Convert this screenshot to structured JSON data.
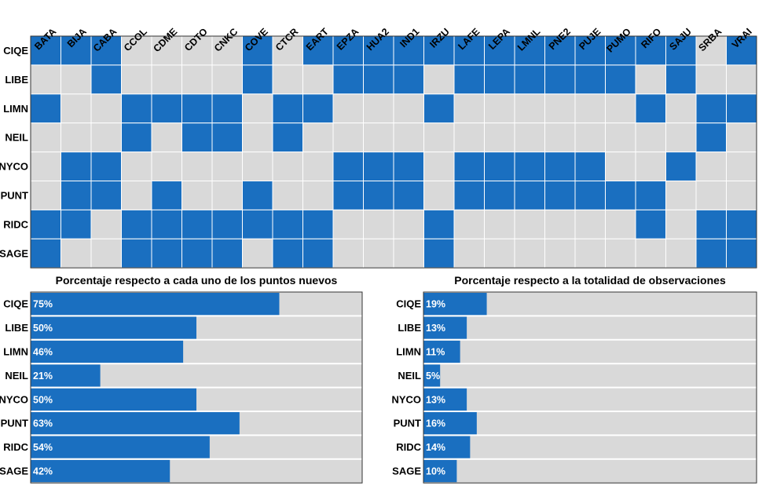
{
  "colors": {
    "on": "#1a6fc0",
    "off": "#d9d9d9",
    "bar": "#1a6fc0",
    "bar_bg": "#d9d9d9"
  },
  "chart_data": [
    {
      "type": "heatmap",
      "title": "",
      "columns": [
        "BATA",
        "BIJA",
        "CABA",
        "CCOL",
        "CDME",
        "CDTO",
        "CNKC",
        "COVE",
        "CTCR",
        "EART",
        "EPZA",
        "HUA2",
        "IND1",
        "IRZU",
        "LAFE",
        "LEPA",
        "LMNL",
        "PNE2",
        "PUJE",
        "PUMO",
        "RIFO",
        "SAJU",
        "SRBA",
        "VRAI"
      ],
      "rows": [
        "CIQE",
        "LIBE",
        "LIMN",
        "NEIL",
        "NYCO",
        "PUNT",
        "RIDC",
        "SAGE"
      ],
      "values": [
        [
          1,
          1,
          1,
          0,
          0,
          0,
          0,
          1,
          0,
          1,
          1,
          1,
          1,
          1,
          1,
          1,
          1,
          1,
          1,
          1,
          1,
          1,
          0,
          1
        ],
        [
          0,
          0,
          1,
          0,
          0,
          0,
          0,
          1,
          0,
          0,
          1,
          1,
          1,
          0,
          1,
          1,
          1,
          1,
          1,
          1,
          0,
          1,
          0,
          0
        ],
        [
          1,
          0,
          0,
          1,
          1,
          1,
          1,
          0,
          1,
          1,
          0,
          0,
          0,
          1,
          0,
          0,
          0,
          0,
          0,
          0,
          1,
          0,
          1,
          1
        ],
        [
          0,
          0,
          0,
          1,
          0,
          1,
          1,
          0,
          1,
          0,
          0,
          0,
          0,
          0,
          0,
          0,
          0,
          0,
          0,
          0,
          0,
          0,
          1,
          0
        ],
        [
          0,
          1,
          1,
          0,
          0,
          0,
          0,
          0,
          0,
          0,
          1,
          1,
          1,
          0,
          1,
          1,
          1,
          1,
          1,
          0,
          0,
          1,
          0,
          0
        ],
        [
          0,
          1,
          1,
          0,
          1,
          0,
          0,
          1,
          0,
          0,
          1,
          1,
          1,
          0,
          1,
          1,
          1,
          1,
          1,
          1,
          1,
          0,
          0,
          0
        ],
        [
          1,
          1,
          0,
          1,
          1,
          1,
          1,
          1,
          1,
          1,
          0,
          0,
          0,
          1,
          0,
          0,
          0,
          0,
          0,
          0,
          1,
          0,
          1,
          1
        ],
        [
          1,
          0,
          0,
          1,
          1,
          1,
          1,
          0,
          1,
          1,
          0,
          0,
          0,
          1,
          0,
          0,
          0,
          0,
          0,
          0,
          0,
          0,
          1,
          1
        ]
      ]
    },
    {
      "type": "bar",
      "orientation": "horizontal",
      "title": "Porcentaje respecto a cada uno de los puntos nuevos",
      "categories": [
        "CIQE",
        "LIBE",
        "LIMN",
        "NEIL",
        "NYCO",
        "PUNT",
        "RIDC",
        "SAGE"
      ],
      "values": [
        75,
        50,
        46,
        21,
        50,
        63,
        54,
        42
      ],
      "labels": [
        "75%",
        "50%",
        "46%",
        "21%",
        "50%",
        "63%",
        "54%",
        "42%"
      ],
      "xlim": [
        0,
        100
      ]
    },
    {
      "type": "bar",
      "orientation": "horizontal",
      "title": "Porcentaje respecto a la totalidad de observaciones",
      "categories": [
        "CIQE",
        "LIBE",
        "LIMN",
        "NEIL",
        "NYCO",
        "PUNT",
        "RIDC",
        "SAGE"
      ],
      "values": [
        19,
        13,
        11,
        5,
        13,
        16,
        14,
        10
      ],
      "labels": [
        "19%",
        "13%",
        "11%",
        "5%",
        "13%",
        "16%",
        "14%",
        "10%"
      ],
      "xlim": [
        0,
        100
      ]
    }
  ]
}
